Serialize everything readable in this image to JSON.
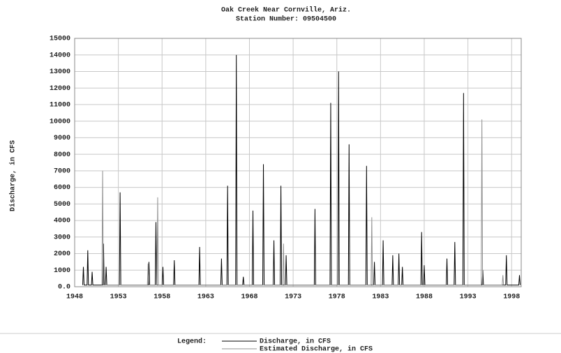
{
  "chart_data": {
    "type": "line",
    "title": "Oak Creek Near Cornville, Ariz.",
    "subtitle": "Station Number: 09504500",
    "y_label": "Discharge, in CFS",
    "legend_title": "Legend:",
    "xlim": [
      1948,
      1999.1
    ],
    "xticks": [
      1948,
      1953,
      1958,
      1963,
      1968,
      1973,
      1978,
      1983,
      1988,
      1993,
      1998
    ],
    "ylim": [
      0,
      15000
    ],
    "yticks": [
      {
        "value": 0,
        "label": "0.0"
      },
      1000,
      2000,
      3000,
      4000,
      5000,
      6000,
      7000,
      8000,
      9000,
      10000,
      11000,
      12000,
      13000,
      14000,
      15000
    ],
    "grid": true,
    "series": [
      {
        "name": "Discharge, in CFS",
        "color": "#000000",
        "x": [
          1948.92,
          1949,
          1949.08,
          1949.42,
          1949.5,
          1949.58,
          1949.92,
          1950,
          1950.08,
          1951.22,
          1951.3,
          1951.38,
          1951.52,
          1951.6,
          1951.68,
          1953.12,
          1953.2,
          1953.28,
          1956.42,
          1956.5,
          1956.58,
          1957.22,
          1957.3,
          1957.38,
          1958.02,
          1958.1,
          1958.18,
          1959.32,
          1959.4,
          1959.48,
          1962.22,
          1962.3,
          1962.38,
          1964.72,
          1964.8,
          1964.88,
          1965.42,
          1965.5,
          1965.58,
          1966.42,
          1966.5,
          1966.58,
          1967.22,
          1967.3,
          1967.38,
          1968.32,
          1968.4,
          1968.48,
          1969.52,
          1969.6,
          1969.68,
          1970.72,
          1970.8,
          1970.88,
          1971.52,
          1971.6,
          1971.68,
          1972.12,
          1972.2,
          1972.28,
          1975.42,
          1975.5,
          1975.58,
          1977.22,
          1977.3,
          1977.38,
          1978.12,
          1978.2,
          1978.28,
          1979.32,
          1979.4,
          1979.48,
          1981.32,
          1981.4,
          1981.48,
          1982.22,
          1982.3,
          1982.38,
          1983.22,
          1983.3,
          1983.38,
          1984.32,
          1984.4,
          1984.48,
          1985.02,
          1985.1,
          1985.18,
          1985.42,
          1985.5,
          1985.58,
          1987.62,
          1987.7,
          1987.78,
          1987.92,
          1988,
          1988.08,
          1990.52,
          1990.6,
          1990.68,
          1991.42,
          1991.5,
          1991.58,
          1992.42,
          1992.5,
          1992.58,
          1994.62,
          1994.7,
          1994.78,
          1997.32,
          1997.4,
          1997.48,
          1998.82,
          1998.9,
          1998.98
        ],
        "values": [
          100,
          1200,
          100,
          100,
          2200,
          100,
          100,
          900,
          100,
          100,
          2600,
          100,
          100,
          1200,
          100,
          100,
          5700,
          100,
          100,
          1500,
          100,
          100,
          3900,
          100,
          100,
          1200,
          100,
          100,
          1600,
          100,
          100,
          2400,
          100,
          100,
          1700,
          100,
          100,
          6100,
          100,
          100,
          14000,
          100,
          100,
          600,
          100,
          100,
          4600,
          100,
          100,
          7400,
          100,
          100,
          2800,
          100,
          100,
          6100,
          100,
          100,
          1900,
          100,
          100,
          4700,
          100,
          100,
          11100,
          100,
          100,
          13000,
          100,
          100,
          8600,
          100,
          100,
          7300,
          100,
          100,
          1500,
          100,
          100,
          2800,
          100,
          100,
          1900,
          100,
          100,
          2000,
          100,
          100,
          1200,
          100,
          100,
          3300,
          100,
          100,
          1300,
          100,
          100,
          1700,
          100,
          100,
          2700,
          100,
          100,
          11700,
          100,
          100,
          1000,
          100,
          100,
          1900,
          100,
          100,
          700,
          100
        ]
      },
      {
        "name": "Estimated Discharge, in CFS",
        "color": "#909090",
        "x": [
          1951.12,
          1951.2,
          1951.28,
          1956.32,
          1956.4,
          1956.48,
          1957.42,
          1957.5,
          1957.58,
          1971.82,
          1971.9,
          1971.98,
          1981.92,
          1982,
          1982.08,
          1994.52,
          1994.6,
          1994.68,
          1996.92,
          1997,
          1997.08
        ],
        "values": [
          100,
          7000,
          100,
          100,
          1400,
          100,
          100,
          5400,
          100,
          100,
          2600,
          100,
          100,
          4200,
          100,
          100,
          10100,
          100,
          100,
          700,
          100
        ]
      }
    ]
  }
}
